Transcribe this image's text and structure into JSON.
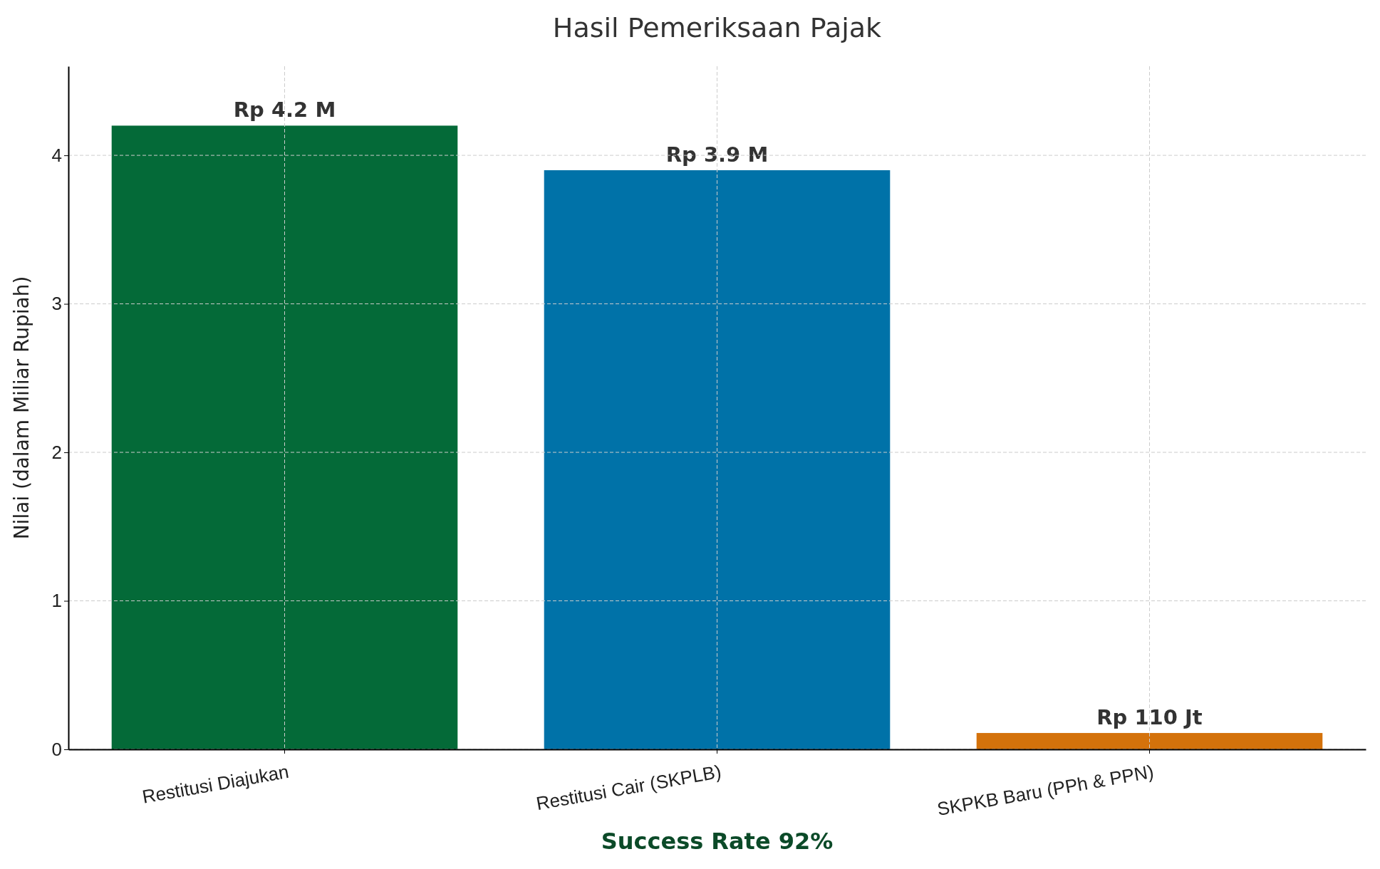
{
  "chart_data": {
    "type": "bar",
    "title": "Hasil Pemeriksaan Pajak",
    "ylabel": "Nilai (dalam Miliar Rupiah)",
    "categories": [
      "Restitusi Diajukan",
      "Restitusi Cair (SKPLB)",
      "SKPKB Baru (PPh & PPN)"
    ],
    "values": [
      4.2,
      3.9,
      0.11
    ],
    "colors": [
      "#046a38",
      "#0072a8",
      "#d4720b"
    ],
    "value_labels": [
      "Rp 4.2 M",
      "Rp 3.9 M",
      "Rp 110 Jt"
    ],
    "ylim": [
      0,
      4.6
    ],
    "yticks": [
      0,
      1,
      2,
      3,
      4
    ],
    "grid": true,
    "annotations": [
      "Success Rate 92%"
    ]
  }
}
